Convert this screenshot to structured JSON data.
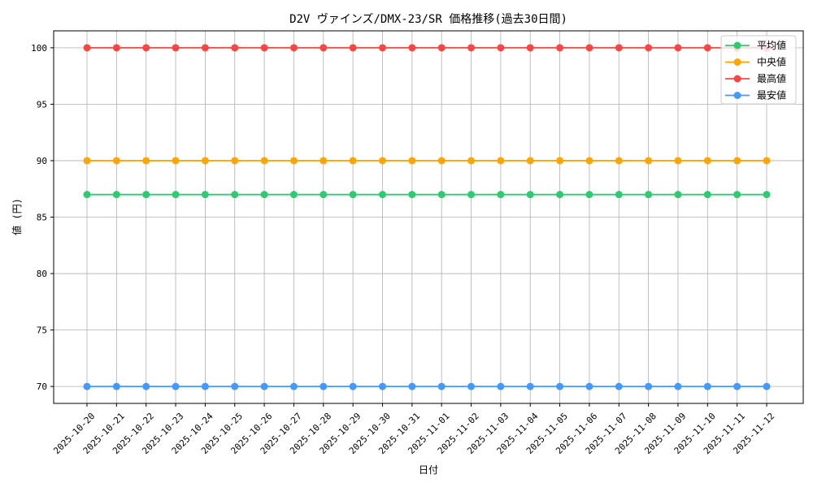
{
  "chart_data": {
    "type": "line",
    "title": "D2V ヴァインズ/DMX-23/SR 価格推移(過去30日間)",
    "xlabel": "日付",
    "ylabel": "値 (円)",
    "ylim": [
      68.5,
      101.5
    ],
    "yticks": [
      70,
      75,
      80,
      85,
      90,
      95,
      100
    ],
    "grid": true,
    "legend_position": "top-right",
    "x": [
      "2025-10-20",
      "2025-10-21",
      "2025-10-22",
      "2025-10-23",
      "2025-10-24",
      "2025-10-25",
      "2025-10-26",
      "2025-10-27",
      "2025-10-28",
      "2025-10-29",
      "2025-10-30",
      "2025-10-31",
      "2025-11-01",
      "2025-11-02",
      "2025-11-03",
      "2025-11-04",
      "2025-11-05",
      "2025-11-06",
      "2025-11-07",
      "2025-11-08",
      "2025-11-09",
      "2025-11-10",
      "2025-11-11",
      "2025-11-12"
    ],
    "series": [
      {
        "name": "平均値",
        "color": "#2ecc71",
        "values": [
          87,
          87,
          87,
          87,
          87,
          87,
          87,
          87,
          87,
          87,
          87,
          87,
          87,
          87,
          87,
          87,
          87,
          87,
          87,
          87,
          87,
          87,
          87,
          87
        ]
      },
      {
        "name": "中央値",
        "color": "#ffa500",
        "values": [
          90,
          90,
          90,
          90,
          90,
          90,
          90,
          90,
          90,
          90,
          90,
          90,
          90,
          90,
          90,
          90,
          90,
          90,
          90,
          90,
          90,
          90,
          90,
          90
        ]
      },
      {
        "name": "最高値",
        "color": "#ff4444",
        "values": [
          100,
          100,
          100,
          100,
          100,
          100,
          100,
          100,
          100,
          100,
          100,
          100,
          100,
          100,
          100,
          100,
          100,
          100,
          100,
          100,
          100,
          100,
          100,
          100
        ]
      },
      {
        "name": "最安値",
        "color": "#4499ff",
        "values": [
          70,
          70,
          70,
          70,
          70,
          70,
          70,
          70,
          70,
          70,
          70,
          70,
          70,
          70,
          70,
          70,
          70,
          70,
          70,
          70,
          70,
          70,
          70,
          70
        ]
      }
    ]
  }
}
